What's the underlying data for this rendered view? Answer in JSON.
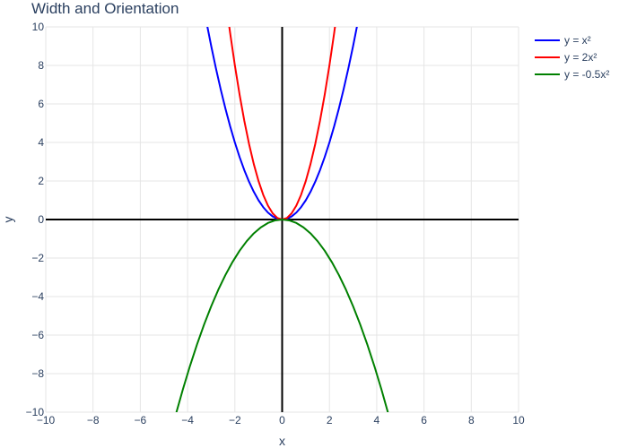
{
  "chart_data": {
    "type": "line",
    "title": "Width and Orientation",
    "xlabel": "x",
    "ylabel": "y",
    "xlim": [
      -10,
      10
    ],
    "ylim": [
      -10,
      10
    ],
    "xticks": [
      -10,
      -8,
      -6,
      -4,
      -2,
      0,
      2,
      4,
      6,
      8,
      10
    ],
    "yticks": [
      -10,
      -8,
      -6,
      -4,
      -2,
      0,
      2,
      4,
      6,
      8,
      10
    ],
    "xtick_labels": [
      "−10",
      "−8",
      "−6",
      "−4",
      "−2",
      "0",
      "2",
      "4",
      "6",
      "8",
      "10"
    ],
    "ytick_labels": [
      "−10",
      "−8",
      "−6",
      "−4",
      "−2",
      "0",
      "2",
      "4",
      "6",
      "8",
      "10"
    ],
    "grid": true,
    "zero_lines": true,
    "legend_position": "top-right",
    "series": [
      {
        "name": "y = x²",
        "color": "#0000ff",
        "x": [
          -3.2,
          -3.0,
          -2.8,
          -2.6,
          -2.4,
          -2.2,
          -2.0,
          -1.8,
          -1.6,
          -1.4,
          -1.2,
          -1.0,
          -0.8,
          -0.6,
          -0.4,
          -0.2,
          0.0,
          0.2,
          0.4,
          0.6,
          0.8,
          1.0,
          1.2,
          1.4,
          1.6,
          1.8,
          2.0,
          2.2,
          2.4,
          2.6,
          2.8,
          3.0,
          3.2
        ],
        "y": [
          10.24,
          9.0,
          7.84,
          6.76,
          5.76,
          4.84,
          4.0,
          3.24,
          2.56,
          1.96,
          1.44,
          1.0,
          0.64,
          0.36,
          0.16,
          0.04,
          0.0,
          0.04,
          0.16,
          0.36,
          0.64,
          1.0,
          1.44,
          1.96,
          2.56,
          3.24,
          4.0,
          4.84,
          5.76,
          6.76,
          7.84,
          9.0,
          10.24
        ]
      },
      {
        "name": "y = 2x²",
        "color": "#ff0000",
        "x": [
          -2.3,
          -2.2,
          -2.0,
          -1.8,
          -1.6,
          -1.4,
          -1.2,
          -1.0,
          -0.8,
          -0.6,
          -0.4,
          -0.2,
          0.0,
          0.2,
          0.4,
          0.6,
          0.8,
          1.0,
          1.2,
          1.4,
          1.6,
          1.8,
          2.0,
          2.2,
          2.3
        ],
        "y": [
          10.58,
          9.68,
          8.0,
          6.48,
          5.12,
          3.92,
          2.88,
          2.0,
          1.28,
          0.72,
          0.32,
          0.08,
          0.0,
          0.08,
          0.32,
          0.72,
          1.28,
          2.0,
          2.88,
          3.92,
          5.12,
          6.48,
          8.0,
          9.68,
          10.58
        ]
      },
      {
        "name": "y = -0.5x²",
        "color": "#008000",
        "x": [
          -4.5,
          -4.2,
          -3.9,
          -3.6,
          -3.3,
          -3.0,
          -2.7,
          -2.4,
          -2.1,
          -1.8,
          -1.5,
          -1.2,
          -0.9,
          -0.6,
          -0.3,
          0.0,
          0.3,
          0.6,
          0.9,
          1.2,
          1.5,
          1.8,
          2.1,
          2.4,
          2.7,
          3.0,
          3.3,
          3.6,
          3.9,
          4.2,
          4.5
        ],
        "y": [
          -10.125,
          -8.82,
          -7.605,
          -6.48,
          -5.445,
          -4.5,
          -3.645,
          -2.88,
          -2.205,
          -1.62,
          -1.125,
          -0.72,
          -0.405,
          -0.18,
          -0.045,
          0.0,
          -0.045,
          -0.18,
          -0.405,
          -0.72,
          -1.125,
          -1.62,
          -2.205,
          -2.88,
          -3.645,
          -4.5,
          -5.445,
          -6.48,
          -7.605,
          -8.82,
          -10.125
        ]
      }
    ]
  }
}
